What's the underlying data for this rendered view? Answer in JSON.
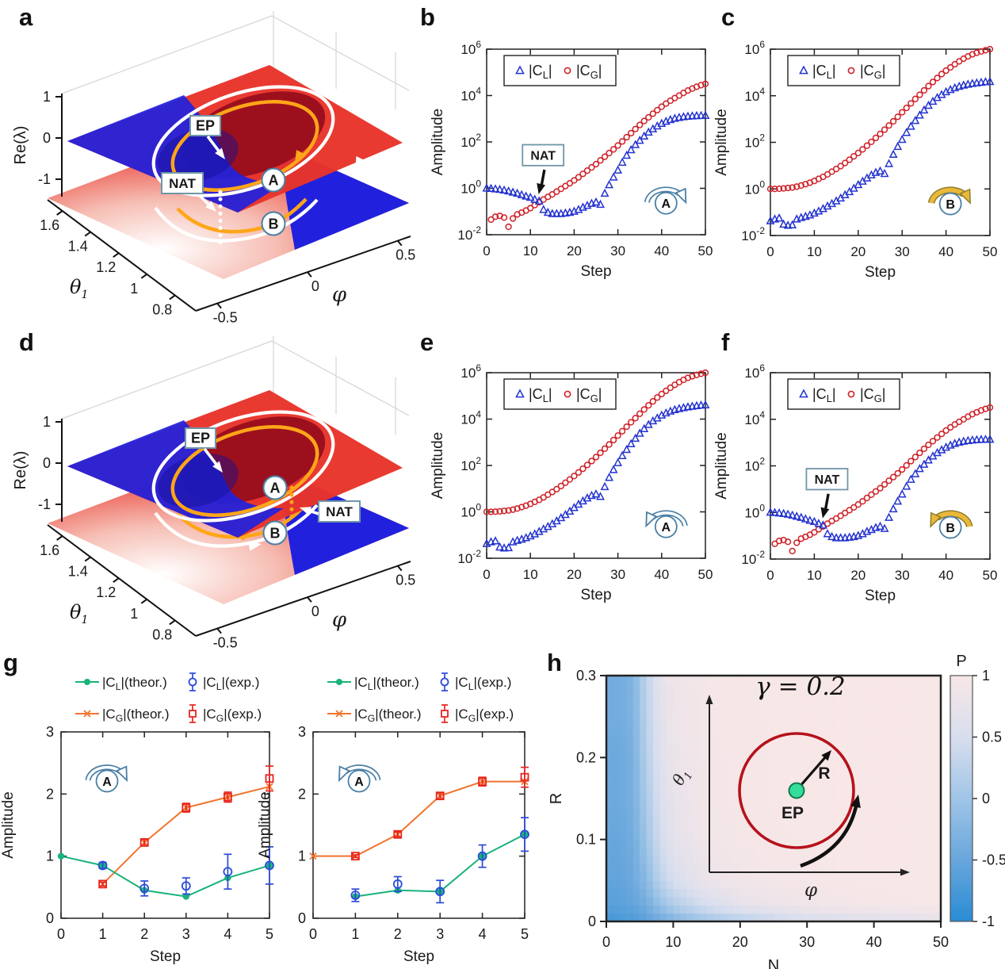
{
  "figure": {
    "panel_letters": [
      "a",
      "b",
      "c",
      "d",
      "e",
      "f",
      "g",
      "h"
    ]
  },
  "surface_labels": {
    "zlabel": "Re(λ)",
    "xlabel": "φ",
    "ylabel_base": "θ",
    "ylabel_sub": "1",
    "zticks": [
      "1",
      "0",
      "-1"
    ],
    "yticks": [
      "1.6",
      "1.4",
      "1.2",
      "1",
      "0.8"
    ],
    "xticks": [
      "-0.5",
      "0",
      "0.5"
    ],
    "ep": "EP",
    "nat": "NAT",
    "point_a": "A",
    "point_b": "B"
  },
  "chart_data": {
    "log_plots": {
      "shared": {
        "type": "scatter",
        "xlabel": "Step",
        "ylabel": "Amplitude",
        "xlim": [
          0,
          50
        ],
        "ylim_log10": [
          -2,
          6
        ],
        "xticks": [
          0,
          10,
          20,
          30,
          40,
          50
        ],
        "ytick_exponents": [
          -2,
          0,
          2,
          4,
          6
        ],
        "legend": [
          {
            "label": "|C_L|",
            "marker": "triangle",
            "color": "#2433cf"
          },
          {
            "label": "|C_G|",
            "marker": "circle",
            "color": "#cf2128"
          }
        ]
      },
      "series_bank": {
        "set1": {
          "CL_start_step": 0,
          "CL": [
            1.0,
            0.97,
            0.93,
            0.88,
            0.82,
            0.75,
            0.67,
            0.6,
            0.52,
            0.45,
            0.4,
            0.33,
            0.28,
            0.12,
            0.09,
            0.08,
            0.08,
            0.08,
            0.085,
            0.09,
            0.1,
            0.12,
            0.15,
            0.18,
            0.22,
            0.25,
            0.2,
            0.6,
            1.4,
            3.0,
            6.0,
            13,
            26,
            45,
            75,
            115,
            175,
            260,
            360,
            480,
            620,
            760,
            900,
            1020,
            1120,
            1200,
            1260,
            1300,
            1330,
            1350,
            1360
          ],
          "CG_start_step": 1,
          "CG": [
            0.045,
            0.06,
            0.065,
            0.055,
            0.022,
            0.05,
            0.075,
            0.09,
            0.11,
            0.14,
            0.19,
            0.25,
            0.33,
            0.43,
            0.55,
            0.72,
            0.95,
            1.25,
            1.65,
            2.2,
            3.0,
            4.2,
            5.8,
            8,
            11,
            16,
            23,
            33,
            48,
            70,
            105,
            160,
            240,
            360,
            540,
            800,
            1150,
            1650,
            2350,
            3300,
            4500,
            6000,
            7800,
            10000,
            13000,
            16500,
            20000,
            24000,
            28000,
            32000
          ]
        },
        "set2": {
          "CL_start_step": 0,
          "CL": [
            0.042,
            0.05,
            0.055,
            0.03,
            0.027,
            0.028,
            0.05,
            0.058,
            0.065,
            0.075,
            0.09,
            0.11,
            0.14,
            0.18,
            0.23,
            0.3,
            0.4,
            0.55,
            0.75,
            1.05,
            1.5,
            2.1,
            2.9,
            3.9,
            5.0,
            5.8,
            4.5,
            12,
            30,
            65,
            130,
            260,
            480,
            850,
            1450,
            2400,
            3800,
            5700,
            8200,
            11000,
            14500,
            18000,
            21500,
            25000,
            28000,
            30500,
            33000,
            35000,
            37000,
            39000,
            40000
          ],
          "CG_start_step": 0,
          "CG": [
            1.0,
            1.0,
            1.02,
            1.05,
            1.1,
            1.15,
            1.25,
            1.4,
            1.6,
            1.85,
            2.2,
            2.7,
            3.3,
            4.2,
            5.5,
            7.2,
            9.5,
            13,
            18,
            25,
            35,
            50,
            72,
            105,
            155,
            230,
            350,
            530,
            800,
            1250,
            1950,
            3000,
            4700,
            7300,
            11000,
            17000,
            26000,
            39000,
            58000,
            85000,
            120000,
            165000,
            225000,
            300000,
            390000,
            490000,
            600000,
            700000,
            800000,
            900000,
            1000000
          ]
        }
      },
      "panels": [
        {
          "id": "b",
          "bank": "set1",
          "nat": true,
          "nat_label": "NAT",
          "loop_letter": "A",
          "loop_direction": "cw",
          "loop_style": "blue"
        },
        {
          "id": "c",
          "bank": "set2",
          "nat": false,
          "nat_label": "",
          "loop_letter": "B",
          "loop_direction": "cw",
          "loop_style": "yellow"
        },
        {
          "id": "e",
          "bank": "set2",
          "nat": false,
          "nat_label": "",
          "loop_letter": "A",
          "loop_direction": "ccw",
          "loop_style": "blue"
        },
        {
          "id": "f",
          "bank": "set1",
          "nat": true,
          "nat_label": "NAT",
          "loop_letter": "B",
          "loop_direction": "ccw",
          "loop_style": "yellow"
        }
      ]
    },
    "g_plots": {
      "type": "line",
      "xlabel": "Step",
      "ylabel": "Amplitude",
      "xlim": [
        0,
        5
      ],
      "ylim": [
        0,
        3
      ],
      "xticks": [
        0,
        1,
        2,
        3,
        4,
        5
      ],
      "yticks": [
        0,
        1,
        2,
        3
      ],
      "legend": [
        {
          "label": "|C_L|(theor.)",
          "color": "#19b37a",
          "marker": "line-dot"
        },
        {
          "label": "|C_L|(exp.)",
          "color": "#2b4bd8",
          "marker": "errorbar-circle"
        },
        {
          "label": "|C_G|(theor.)",
          "color": "#f2742e",
          "marker": "line-x"
        },
        {
          "label": "|C_G|(exp.)",
          "color": "#e8251f",
          "marker": "errorbar-square"
        }
      ],
      "panels": [
        {
          "id": "g-left",
          "loop_letter": "A",
          "loop_direction": "cw",
          "CL_theor": {
            "x": [
              0,
              1,
              2,
              3,
              4,
              5
            ],
            "y": [
              1.0,
              0.85,
              0.45,
              0.35,
              0.65,
              0.85
            ]
          },
          "CL_exp": {
            "x": [
              1,
              2,
              3,
              4,
              5
            ],
            "y": [
              0.85,
              0.48,
              0.52,
              0.75,
              0.85
            ],
            "err": [
              0.05,
              0.12,
              0.13,
              0.28,
              0.3
            ]
          },
          "CG_theor": {
            "x": [
              1,
              2,
              3,
              4,
              5
            ],
            "y": [
              0.55,
              1.22,
              1.78,
              1.95,
              2.12
            ]
          },
          "CG_exp": {
            "x": [
              1,
              2,
              3,
              4,
              5
            ],
            "y": [
              0.55,
              1.22,
              1.78,
              1.95,
              2.25
            ],
            "err": [
              0.03,
              0.05,
              0.07,
              0.08,
              0.2
            ]
          }
        },
        {
          "id": "g-right",
          "loop_letter": "A",
          "loop_direction": "ccw",
          "CL_theor": {
            "x": [
              1,
              2,
              3,
              4,
              5
            ],
            "y": [
              0.35,
              0.45,
              0.43,
              1.0,
              1.35
            ]
          },
          "CL_exp": {
            "x": [
              1,
              2,
              3,
              4,
              5
            ],
            "y": [
              0.37,
              0.55,
              0.43,
              1.0,
              1.35
            ],
            "err": [
              0.1,
              0.12,
              0.18,
              0.18,
              0.27
            ]
          },
          "CG_theor": {
            "x": [
              0,
              1,
              2,
              3,
              4,
              5
            ],
            "y": [
              1.0,
              1.0,
              1.35,
              1.97,
              2.2,
              2.2
            ]
          },
          "CG_exp": {
            "x": [
              1,
              2,
              3,
              4,
              5
            ],
            "y": [
              1.0,
              1.35,
              1.97,
              2.2,
              2.27
            ],
            "err": [
              0.02,
              0.04,
              0.05,
              0.07,
              0.16
            ]
          }
        }
      ]
    },
    "heatmap": {
      "type": "heatmap",
      "xlabel": "N",
      "ylabel": "R",
      "annotation": "γ = 0.2",
      "colorbar_label": "P",
      "xlim": [
        0,
        50
      ],
      "ylim": [
        0,
        0.3
      ],
      "xticks": [
        0,
        10,
        20,
        30,
        40,
        50
      ],
      "yticks": [
        0,
        0.1,
        0.2,
        0.3
      ],
      "colorbar_ticks": [
        "1",
        "0.5",
        "0",
        "-0.5",
        "-1"
      ],
      "colormap_stops": {
        "-1": "#298cd4",
        "-0.5": "#68a6dc",
        "0": "#a0c5e7",
        "0.5": "#d8deee",
        "1": "#f8e7e7"
      },
      "inner_axes": {
        "x": "φ",
        "y_base": "θ",
        "y_sub": "1"
      },
      "ep_label": "EP",
      "radius_label": "R",
      "grid": {
        "N": [
          0,
          2,
          4,
          6,
          8,
          10,
          15,
          20,
          25,
          30,
          35,
          40,
          45,
          50
        ],
        "R": [
          0,
          0.02,
          0.05,
          0.1,
          0.15,
          0.2,
          0.25,
          0.3
        ],
        "P_rows_bottom_to_top": [
          [
            -0.8,
            -0.75,
            -0.7,
            -0.6,
            -0.45,
            -0.3,
            0.0,
            0.2,
            0.35,
            0.5,
            0.55,
            0.6,
            0.65,
            0.7
          ],
          [
            -0.6,
            -0.6,
            -0.55,
            -0.4,
            -0.1,
            0.15,
            0.5,
            0.7,
            0.8,
            0.88,
            0.92,
            0.95,
            0.97,
            0.98
          ],
          [
            -0.55,
            -0.55,
            -0.45,
            -0.2,
            0.25,
            0.5,
            0.8,
            0.9,
            0.94,
            0.96,
            0.98,
            0.99,
            1.0,
            1.0
          ],
          [
            -0.5,
            -0.5,
            -0.4,
            0.0,
            0.45,
            0.7,
            0.9,
            0.95,
            0.97,
            0.98,
            0.99,
            1.0,
            1.0,
            1.0
          ],
          [
            -0.45,
            -0.45,
            -0.35,
            0.1,
            0.55,
            0.75,
            0.92,
            0.96,
            0.98,
            0.99,
            1.0,
            1.0,
            1.0,
            1.0
          ],
          [
            -0.45,
            -0.45,
            -0.35,
            0.2,
            0.6,
            0.8,
            0.93,
            0.96,
            0.98,
            0.99,
            1.0,
            1.0,
            1.0,
            1.0
          ],
          [
            -0.4,
            -0.4,
            -0.3,
            0.25,
            0.65,
            0.82,
            0.94,
            0.97,
            0.98,
            0.99,
            1.0,
            1.0,
            1.0,
            1.0
          ],
          [
            -0.4,
            -0.4,
            -0.3,
            0.3,
            0.7,
            0.85,
            0.95,
            0.97,
            0.98,
            0.99,
            1.0,
            1.0,
            1.0,
            1.0
          ]
        ]
      }
    },
    "surface_plots": {
      "type": "3d-surface",
      "description": "Two Riemann-sheet eigenvalue surfaces (red upper / blue lower) crossing at an exceptional point, with white and orange encircling loops",
      "panels": [
        {
          "id": "a",
          "loop_direction": "clockwise",
          "nat_side": "left"
        },
        {
          "id": "d",
          "loop_direction": "counterclockwise",
          "nat_side": "right"
        }
      ]
    }
  }
}
